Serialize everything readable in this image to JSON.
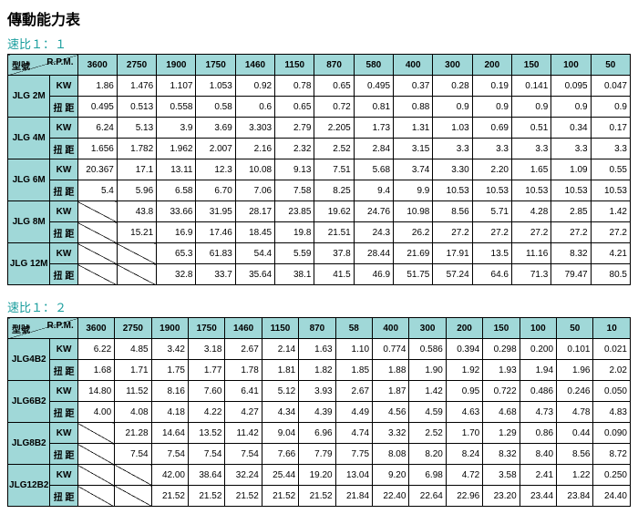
{
  "title": "傳動能力表",
  "subtitle1": "速比１：１",
  "subtitle2": "速比１：２",
  "corner": {
    "rpm": "R.P.M.",
    "model": "型號"
  },
  "labels": {
    "kw": "KW",
    "torque": "扭 距"
  },
  "style": {
    "header_bg": "#a0d8d8",
    "border_color": "#000000",
    "font_size_pt": 10,
    "text_align_data": "right",
    "subtitle_color": "#1a9e9e"
  },
  "table1": {
    "cols": [
      "3600",
      "2750",
      "1900",
      "1750",
      "1460",
      "1150",
      "870",
      "580",
      "400",
      "300",
      "200",
      "150",
      "100",
      "50"
    ],
    "rows": [
      {
        "model": "JLG 2M",
        "kw": [
          "1.86",
          "1.476",
          "1.107",
          "1.053",
          "0.92",
          "0.78",
          "0.65",
          "0.495",
          "0.37",
          "0.28",
          "0.19",
          "0.141",
          "0.095",
          "0.047"
        ],
        "torque": [
          "0.495",
          "0.513",
          "0.558",
          "0.58",
          "0.6",
          "0.65",
          "0.72",
          "0.81",
          "0.88",
          "0.9",
          "0.9",
          "0.9",
          "0.9",
          "0.9"
        ]
      },
      {
        "model": "JLG 4M",
        "kw": [
          "6.24",
          "5.13",
          "3.9",
          "3.69",
          "3.303",
          "2.79",
          "2.205",
          "1.73",
          "1.31",
          "1.03",
          "0.69",
          "0.51",
          "0.34",
          "0.17"
        ],
        "torque": [
          "1.656",
          "1.782",
          "1.962",
          "2.007",
          "2.16",
          "2.32",
          "2.52",
          "2.84",
          "3.15",
          "3.3",
          "3.3",
          "3.3",
          "3.3",
          "3.3"
        ]
      },
      {
        "model": "JLG 6M",
        "kw": [
          "20.367",
          "17.1",
          "13.11",
          "12.3",
          "10.08",
          "9.13",
          "7.51",
          "5.68",
          "3.74",
          "3.30",
          "2.20",
          "1.65",
          "1.09",
          "0.55"
        ],
        "torque": [
          "5.4",
          "5.96",
          "6.58",
          "6.70",
          "7.06",
          "7.58",
          "8.25",
          "9.4",
          "9.9",
          "10.53",
          "10.53",
          "10.53",
          "10.53",
          "10.53"
        ]
      },
      {
        "model": "JLG 8M",
        "kw": [
          "",
          "43.8",
          "33.66",
          "31.95",
          "28.17",
          "23.85",
          "19.62",
          "24.76",
          "10.98",
          "8.56",
          "5.71",
          "4.28",
          "2.85",
          "1.42"
        ],
        "torque": [
          "",
          "15.21",
          "16.9",
          "17.46",
          "18.45",
          "19.8",
          "21.51",
          "24.3",
          "26.2",
          "27.2",
          "27.2",
          "27.2",
          "27.2",
          "27.2"
        ]
      },
      {
        "model": "JLG 12M",
        "kw": [
          "",
          "",
          "65.3",
          "61.83",
          "54.4",
          "5.59",
          "37.8",
          "28.44",
          "21.69",
          "17.91",
          "13.5",
          "11.16",
          "8.32",
          "4.21"
        ],
        "torque": [
          "",
          "",
          "32.8",
          "33.7",
          "35.64",
          "38.1",
          "41.5",
          "46.9",
          "51.75",
          "57.24",
          "64.6",
          "71.3",
          "79.47",
          "80.5"
        ]
      }
    ]
  },
  "table2": {
    "cols": [
      "3600",
      "2750",
      "1900",
      "1750",
      "1460",
      "1150",
      "870",
      "58",
      "400",
      "300",
      "200",
      "150",
      "100",
      "50",
      "10"
    ],
    "rows": [
      {
        "model": "JLG4B2",
        "kw": [
          "6.22",
          "4.85",
          "3.42",
          "3.18",
          "2.67",
          "2.14",
          "1.63",
          "1.10",
          "0.774",
          "0.586",
          "0.394",
          "0.298",
          "0.200",
          "0.101",
          "0.021"
        ],
        "torque": [
          "1.68",
          "1.71",
          "1.75",
          "1.77",
          "1.78",
          "1.81",
          "1.82",
          "1.85",
          "1.88",
          "1.90",
          "1.92",
          "1.93",
          "1.94",
          "1.96",
          "2.02"
        ]
      },
      {
        "model": "JLG6B2",
        "kw": [
          "14.80",
          "11.52",
          "8.16",
          "7.60",
          "6.41",
          "5.12",
          "3.93",
          "2.67",
          "1.87",
          "1.42",
          "0.95",
          "0.722",
          "0.486",
          "0.246",
          "0.050"
        ],
        "torque": [
          "4.00",
          "4.08",
          "4.18",
          "4.22",
          "4.27",
          "4.34",
          "4.39",
          "4.49",
          "4.56",
          "4.59",
          "4.63",
          "4.68",
          "4.73",
          "4.78",
          "4.83"
        ]
      },
      {
        "model": "JLG8B2",
        "kw": [
          "",
          "21.28",
          "14.64",
          "13.52",
          "11.42",
          "9.04",
          "6.96",
          "4.74",
          "3.32",
          "2.52",
          "1.70",
          "1.29",
          "0.86",
          "0.44",
          "0.090"
        ],
        "torque": [
          "",
          "7.54",
          "7.54",
          "7.54",
          "7.54",
          "7.66",
          "7.79",
          "7.75",
          "8.08",
          "8.20",
          "8.24",
          "8.32",
          "8.40",
          "8.56",
          "8.72"
        ]
      },
      {
        "model": "JLG12B2",
        "kw": [
          "",
          "",
          "42.00",
          "38.64",
          "32.24",
          "25.44",
          "19.20",
          "13.04",
          "9.20",
          "6.98",
          "4.72",
          "3.58",
          "2.41",
          "1.22",
          "0.250"
        ],
        "torque": [
          "",
          "",
          "21.52",
          "21.52",
          "21.52",
          "21.52",
          "21.52",
          "21.84",
          "22.40",
          "22.64",
          "22.96",
          "23.20",
          "23.44",
          "23.84",
          "24.40"
        ]
      }
    ]
  }
}
